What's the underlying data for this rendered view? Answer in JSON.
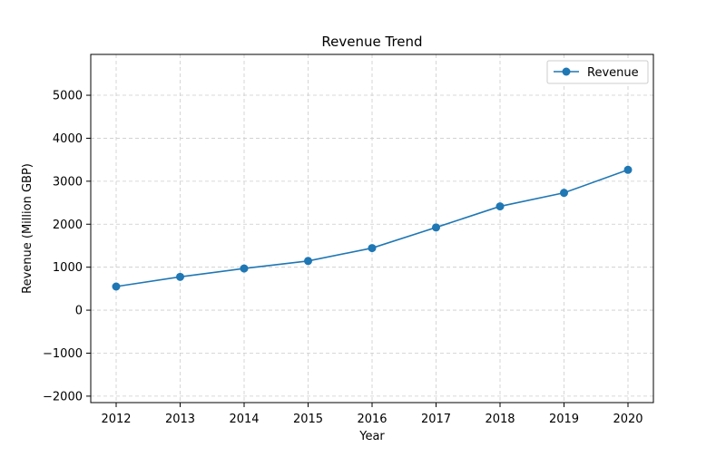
{
  "chart_data": {
    "type": "line",
    "title": "Revenue Trend",
    "xlabel": "Year",
    "ylabel": "Revenue (Million GBP)",
    "categories": [
      "2012",
      "2013",
      "2014",
      "2015",
      "2016",
      "2017",
      "2018",
      "2019",
      "2020"
    ],
    "series": [
      {
        "name": "Revenue",
        "values": [
          550,
          775,
          970,
          1145,
          1445,
          1925,
          2415,
          2730,
          3265
        ]
      }
    ],
    "yticks": [
      -2000,
      -1000,
      0,
      1000,
      2000,
      3000,
      4000,
      5000
    ],
    "ytick_labels": [
      "−2000",
      "−1000",
      "0",
      "1000",
      "2000",
      "3000",
      "4000",
      "5000"
    ],
    "ylim": [
      -2150,
      5950
    ],
    "grid": true,
    "legend_position": "top-right",
    "colors": {
      "series": "#1f77b4",
      "grid": "#cccccc",
      "axis": "#000000"
    }
  }
}
